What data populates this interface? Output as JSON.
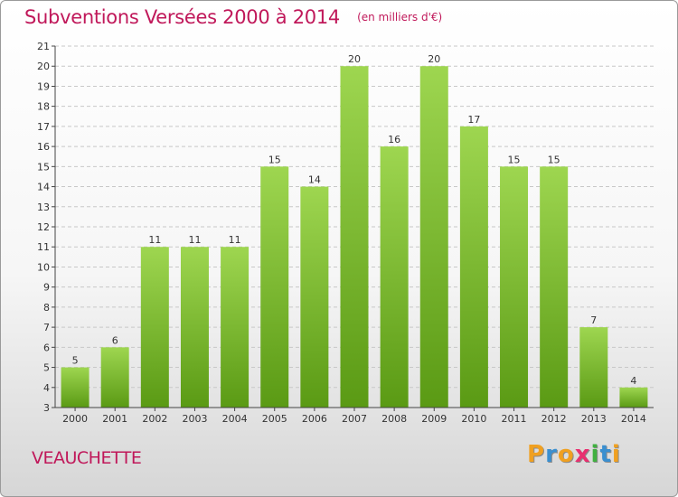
{
  "title": "Subventions Versées 2000 à 2014",
  "unit": "(en milliers d'€)",
  "commune": "VEAUCHETTE",
  "brand": {
    "letters": [
      "P",
      "r",
      "o",
      "x",
      "i",
      "t",
      "i"
    ],
    "colors": [
      "#f0a020",
      "#3a8fd0",
      "#f0a020",
      "#e83070",
      "#40b040",
      "#3a8fd0",
      "#f0a020"
    ]
  },
  "colors": {
    "title": "#c0185a",
    "bar_top": "#9ed650",
    "bar_bottom": "#5a9a14",
    "grid": "#c8c8c8",
    "axis": "#444444"
  },
  "chart_data": {
    "type": "bar",
    "categories": [
      "2000",
      "2001",
      "2002",
      "2003",
      "2004",
      "2005",
      "2006",
      "2007",
      "2008",
      "2009",
      "2010",
      "2011",
      "2012",
      "2013",
      "2014"
    ],
    "values": [
      5,
      6,
      11,
      11,
      11,
      15,
      14,
      20,
      16,
      20,
      17,
      15,
      15,
      7,
      4
    ],
    "ylim": [
      3,
      21
    ],
    "yticks": [
      3,
      4,
      5,
      6,
      7,
      8,
      9,
      10,
      11,
      12,
      13,
      14,
      15,
      16,
      17,
      18,
      19,
      20,
      21
    ],
    "grid": true,
    "data_labels": true
  }
}
